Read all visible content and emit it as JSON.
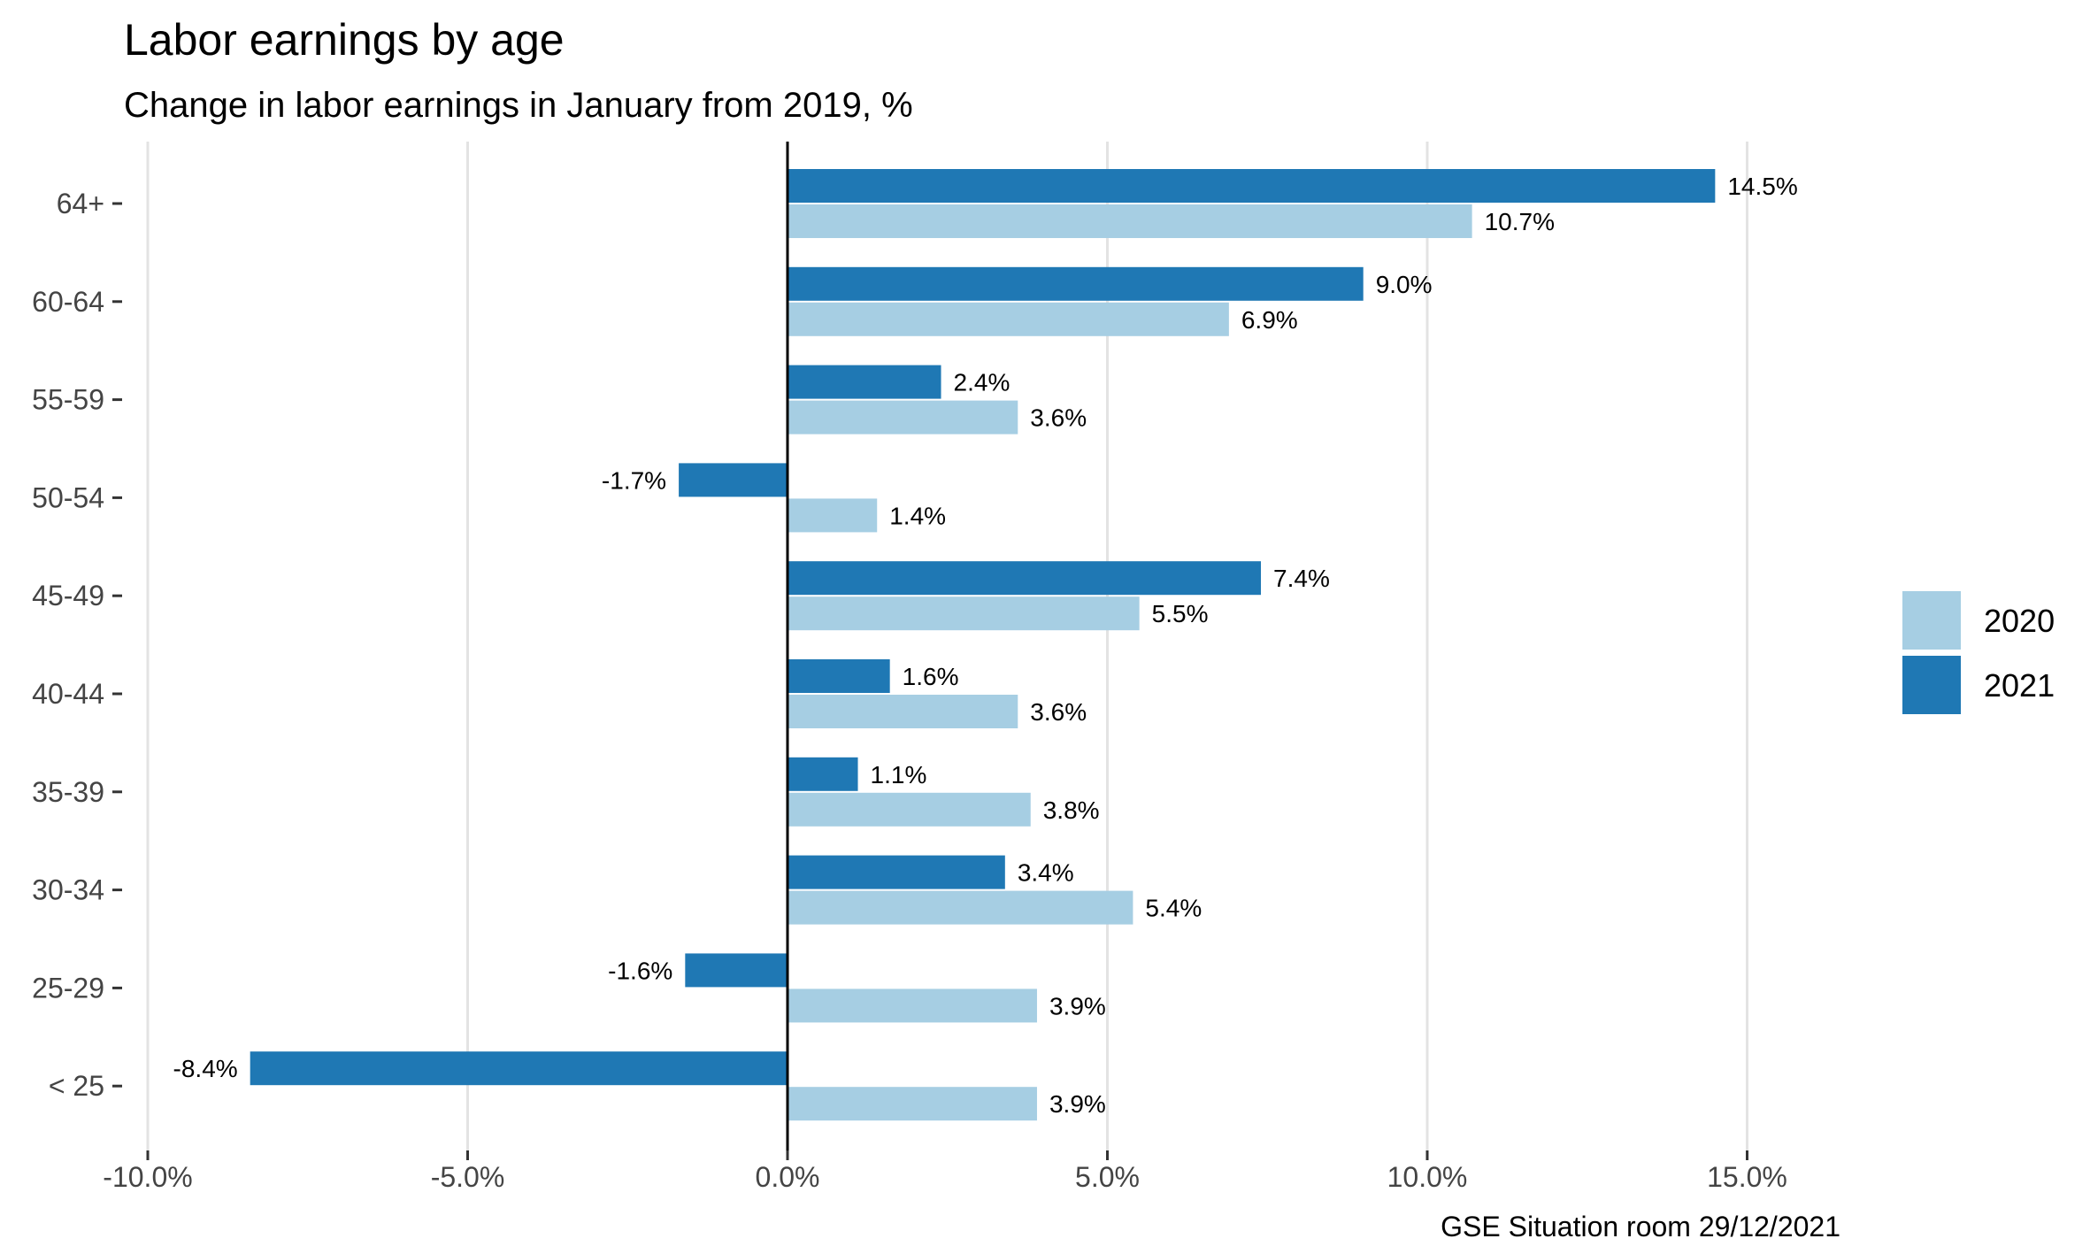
{
  "chart_data": {
    "type": "bar",
    "orientation": "horizontal",
    "title": "Labor earnings by age",
    "subtitle": "Change in labor earnings in January from 2019, %",
    "caption": "GSE Situation room 29/12/2021",
    "categories": [
      "64+",
      "60-64",
      "55-59",
      "50-54",
      "45-49",
      "40-44",
      "35-39",
      "30-34",
      "25-29",
      "< 25"
    ],
    "series": [
      {
        "name": "2021",
        "color": "#1f78b4",
        "values": [
          14.5,
          9.0,
          2.4,
          -1.7,
          7.4,
          1.6,
          1.1,
          3.4,
          -1.6,
          -8.4
        ],
        "labels": [
          "14.5%",
          "9.0%",
          "2.4%",
          "-1.7%",
          "7.4%",
          "1.6%",
          "1.1%",
          "3.4%",
          "-1.6%",
          "-8.4%"
        ]
      },
      {
        "name": "2020",
        "color": "#a6cee3",
        "values": [
          10.7,
          6.9,
          3.6,
          1.4,
          5.5,
          3.6,
          3.8,
          5.4,
          3.9,
          3.9
        ],
        "labels": [
          "10.7%",
          "6.9%",
          "3.6%",
          "1.4%",
          "5.5%",
          "3.6%",
          "3.8%",
          "5.4%",
          "3.9%",
          "3.9%"
        ]
      }
    ],
    "xlim": [
      -10,
      18.0
    ],
    "xticks": [
      -10,
      -5,
      0,
      5,
      10,
      15
    ],
    "xtick_labels": [
      "-10.0%",
      "-5.0%",
      "0.0%",
      "5.0%",
      "10.0%",
      "15.0%"
    ],
    "grid": "vertical-major",
    "legend": {
      "position": "right",
      "entries": [
        {
          "name": "2020",
          "color": "#a6cee3"
        },
        {
          "name": "2021",
          "color": "#1f78b4"
        }
      ]
    }
  }
}
